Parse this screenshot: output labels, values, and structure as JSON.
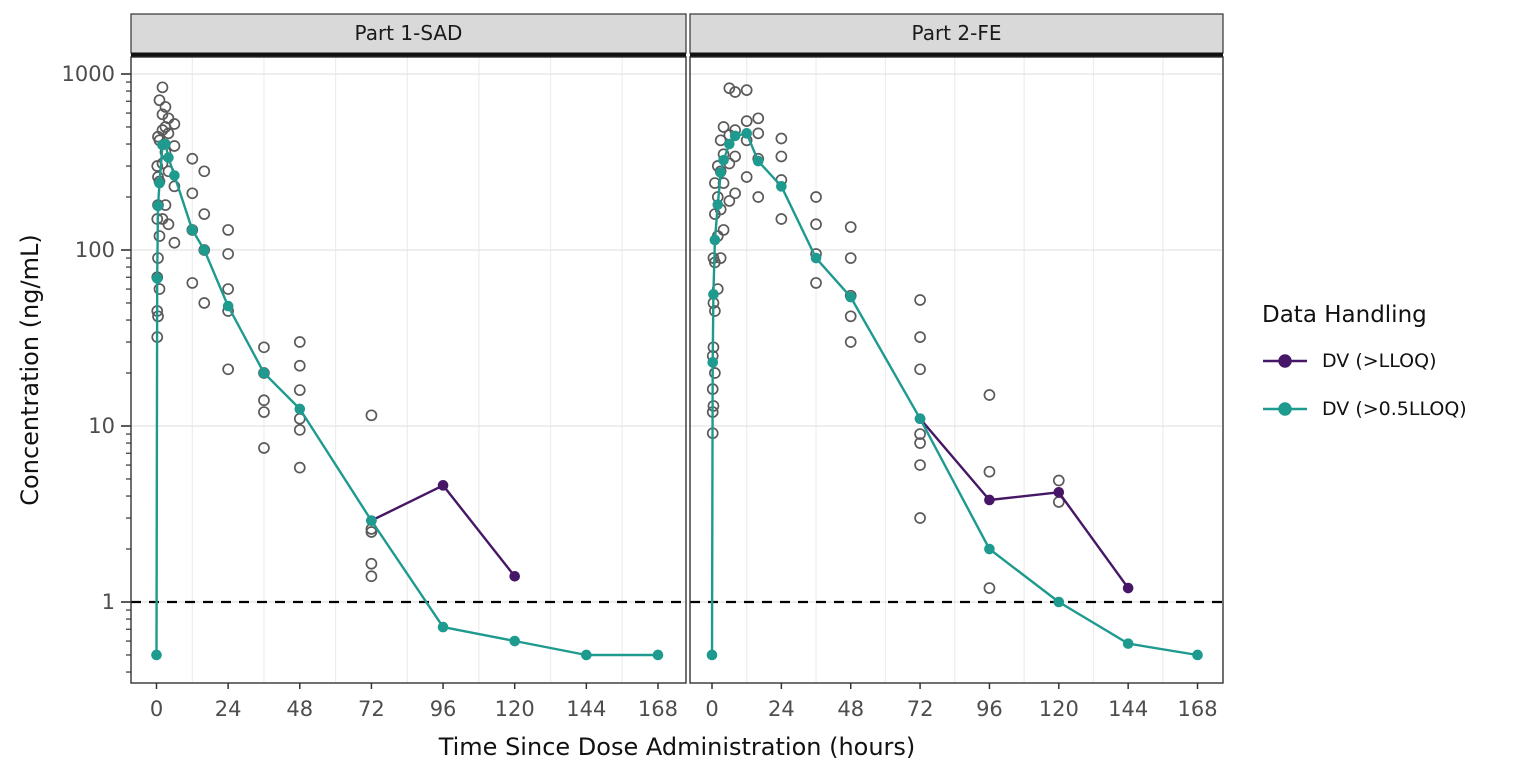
{
  "figure": {
    "x_title": "Time Since Dose Administration (hours)",
    "y_title": "Concentration (ng/mL)"
  },
  "legend": {
    "title": "Data Handling",
    "items": [
      {
        "label": "DV (>LLOQ)",
        "color": "#461766"
      },
      {
        "label": "DV (>0.5LLOQ)",
        "color": "#1E9A8F"
      }
    ]
  },
  "colors": {
    "teal": "#1E9A8F",
    "purple": "#461766",
    "observed_stroke": "#5A5A5A",
    "grid_major": "#E4E4E4",
    "grid_minor": "#EDEDED",
    "panel_border": "#333333",
    "strip_fill": "#D9D9D9",
    "strip_separator": "#111111",
    "tick_color": "#333333",
    "tick_label": "#4D4D4D",
    "reference_line": "#000000",
    "background": "#FFFFFF"
  },
  "chart_data": {
    "type": "line",
    "subtype": "line+scatter, faceted, semilog-y",
    "y_scale": "log10",
    "xlabel": "Time Since Dose Administration (hours)",
    "ylabel": "Concentration (ng/mL)",
    "xlim": [
      -9,
      180
    ],
    "ylim": [
      0.346,
      1250
    ],
    "x_ticks": [
      0,
      24,
      48,
      72,
      96,
      120,
      144,
      168
    ],
    "y_major_ticks": [
      1,
      10,
      100,
      1000
    ],
    "x_minor_gridlines": [
      12,
      36,
      60,
      84,
      108,
      132,
      156
    ],
    "reference_line": {
      "y": 1,
      "style": "dashed"
    },
    "legend_title": "Data Handling",
    "legend_position": "right",
    "grid": "y-major and x-minor only",
    "panels": [
      {
        "facet_label": "Part 1-SAD",
        "series": [
          {
            "name": "DV (>LLOQ)",
            "color": "#461766",
            "points": [
              [
                72,
                2.9
              ],
              [
                96,
                4.6
              ],
              [
                120,
                1.4
              ]
            ]
          },
          {
            "name": "DV (>0.5LLOQ)",
            "color": "#1E9A8F",
            "points": [
              [
                0,
                0.5
              ],
              [
                0.25,
                69
              ],
              [
                0.5,
                178
              ],
              [
                1,
                240
              ],
              [
                2,
                395
              ],
              [
                3,
                400
              ],
              [
                4,
                335
              ],
              [
                6,
                265
              ],
              [
                12,
                130
              ],
              [
                16,
                100
              ],
              [
                24,
                48
              ],
              [
                36,
                20
              ],
              [
                48,
                12.5
              ],
              [
                72,
                2.9
              ],
              [
                96,
                0.72
              ],
              [
                120,
                0.6
              ],
              [
                144,
                0.5
              ],
              [
                168,
                0.5
              ]
            ]
          }
        ],
        "observed_points": [
          [
            0.25,
            32
          ],
          [
            0.25,
            45
          ],
          [
            0.25,
            70
          ],
          [
            0.25,
            150
          ],
          [
            0.25,
            300
          ],
          [
            0.5,
            42
          ],
          [
            0.5,
            90
          ],
          [
            0.5,
            180
          ],
          [
            0.5,
            260
          ],
          [
            0.5,
            440
          ],
          [
            1,
            60
          ],
          [
            1,
            120
          ],
          [
            1,
            245
          ],
          [
            1,
            420
          ],
          [
            1,
            710
          ],
          [
            2,
            150
          ],
          [
            2,
            310
          ],
          [
            2,
            480
          ],
          [
            2,
            590
          ],
          [
            2,
            840
          ],
          [
            3,
            180
          ],
          [
            3,
            360
          ],
          [
            3,
            500
          ],
          [
            3,
            650
          ],
          [
            4,
            140
          ],
          [
            4,
            280
          ],
          [
            4,
            460
          ],
          [
            4,
            560
          ],
          [
            6,
            110
          ],
          [
            6,
            230
          ],
          [
            6,
            390
          ],
          [
            6,
            520
          ],
          [
            12,
            65
          ],
          [
            12,
            130
          ],
          [
            12,
            210
          ],
          [
            12,
            330
          ],
          [
            16,
            50
          ],
          [
            16,
            100
          ],
          [
            16,
            160
          ],
          [
            16,
            280
          ],
          [
            24,
            21
          ],
          [
            24,
            45
          ],
          [
            24,
            60
          ],
          [
            24,
            95
          ],
          [
            24,
            130
          ],
          [
            36,
            7.5
          ],
          [
            36,
            12
          ],
          [
            36,
            14
          ],
          [
            36,
            20
          ],
          [
            36,
            28
          ],
          [
            48,
            5.8
          ],
          [
            48,
            9.5
          ],
          [
            48,
            11
          ],
          [
            48,
            16
          ],
          [
            48,
            22
          ],
          [
            48,
            30
          ],
          [
            72,
            1.4
          ],
          [
            72,
            1.65
          ],
          [
            72,
            2.5
          ],
          [
            72,
            2.6
          ],
          [
            72,
            11.5
          ]
        ]
      },
      {
        "facet_label": "Part 2-FE",
        "series": [
          {
            "name": "DV (>LLOQ)",
            "color": "#461766",
            "points": [
              [
                72,
                11
              ],
              [
                96,
                3.8
              ],
              [
                120,
                4.2
              ],
              [
                144,
                1.2
              ]
            ]
          },
          {
            "name": "DV (>0.5LLOQ)",
            "color": "#1E9A8F",
            "points": [
              [
                0,
                0.5
              ],
              [
                0.25,
                23
              ],
              [
                0.5,
                56
              ],
              [
                1,
                114
              ],
              [
                2,
                181
              ],
              [
                3,
                275
              ],
              [
                4,
                324
              ],
              [
                6,
                400
              ],
              [
                8,
                445
              ],
              [
                12,
                460
              ],
              [
                16,
                320
              ],
              [
                24,
                230
              ],
              [
                36,
                90
              ],
              [
                48,
                54
              ],
              [
                72,
                11
              ],
              [
                96,
                2.0
              ],
              [
                120,
                1.0
              ],
              [
                144,
                0.58
              ],
              [
                168,
                0.5
              ]
            ]
          }
        ],
        "observed_points": [
          [
            0.25,
            9.1
          ],
          [
            0.25,
            12
          ],
          [
            0.25,
            16.2
          ],
          [
            0.25,
            25
          ],
          [
            0.5,
            13
          ],
          [
            0.5,
            28
          ],
          [
            0.5,
            50
          ],
          [
            0.5,
            90
          ],
          [
            1,
            20
          ],
          [
            1,
            45
          ],
          [
            1,
            85
          ],
          [
            1,
            160
          ],
          [
            1,
            240
          ],
          [
            2,
            60
          ],
          [
            2,
            120
          ],
          [
            2,
            200
          ],
          [
            2,
            300
          ],
          [
            3,
            90
          ],
          [
            3,
            170
          ],
          [
            3,
            280
          ],
          [
            3,
            420
          ],
          [
            4,
            130
          ],
          [
            4,
            240
          ],
          [
            4,
            350
          ],
          [
            4,
            500
          ],
          [
            6,
            190
          ],
          [
            6,
            310
          ],
          [
            6,
            450
          ],
          [
            6,
            830
          ],
          [
            8,
            210
          ],
          [
            8,
            340
          ],
          [
            8,
            480
          ],
          [
            8,
            790
          ],
          [
            12,
            260
          ],
          [
            12,
            420
          ],
          [
            12,
            540
          ],
          [
            12,
            810
          ],
          [
            16,
            200
          ],
          [
            16,
            330
          ],
          [
            16,
            460
          ],
          [
            16,
            560
          ],
          [
            24,
            150
          ],
          [
            24,
            250
          ],
          [
            24,
            340
          ],
          [
            24,
            430
          ],
          [
            36,
            65
          ],
          [
            36,
            95
          ],
          [
            36,
            140
          ],
          [
            36,
            200
          ],
          [
            48,
            30
          ],
          [
            48,
            42
          ],
          [
            48,
            55
          ],
          [
            48,
            90
          ],
          [
            48,
            135
          ],
          [
            72,
            3.0
          ],
          [
            72,
            6.0
          ],
          [
            72,
            8.0
          ],
          [
            72,
            9.0
          ],
          [
            72,
            21
          ],
          [
            72,
            32
          ],
          [
            72,
            52
          ],
          [
            96,
            1.2
          ],
          [
            96,
            5.5
          ],
          [
            96,
            15
          ],
          [
            120,
            3.7
          ],
          [
            120,
            4.9
          ]
        ]
      }
    ]
  }
}
